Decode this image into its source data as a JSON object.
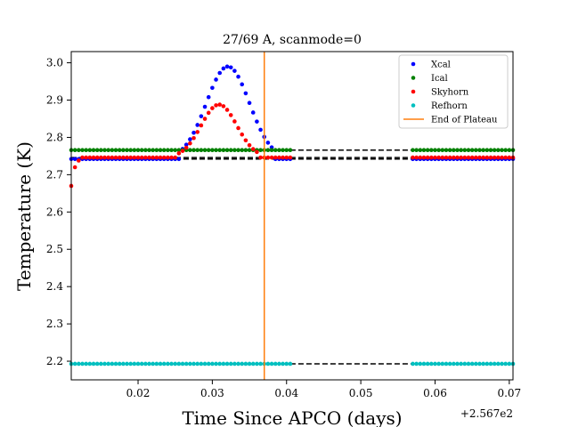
{
  "chart_data": {
    "type": "scatter",
    "title": "27/69 A, scanmode=0",
    "xlabel": "Time Since APCO (days)",
    "ylabel": "Temperature (K)",
    "x_offset_label": "+2.567e2",
    "xlim": [
      0.011,
      0.0705
    ],
    "ylim": [
      2.15,
      3.03
    ],
    "x_ticks": [
      0.02,
      0.03,
      0.04,
      0.05,
      0.06,
      0.07
    ],
    "x_tick_labels": [
      "0.02",
      "0.03",
      "0.04",
      "0.05",
      "0.06",
      "0.07"
    ],
    "y_ticks": [
      2.2,
      2.3,
      2.4,
      2.5,
      2.6,
      2.7,
      2.8,
      2.9,
      3.0
    ],
    "y_tick_labels": [
      "2.2",
      "2.3",
      "2.4",
      "2.5",
      "2.6",
      "2.7",
      "2.8",
      "2.9",
      "3.0"
    ],
    "grid": false,
    "legend_position": "top-right",
    "series": [
      {
        "name": "Xcal",
        "color": "#0000ff",
        "segments": [
          {
            "x_start": 0.011,
            "x_end": 0.0405,
            "base": 2.742,
            "peak": {
              "center": 0.0321,
              "height": 0.248,
              "width": 0.0029,
              "x_min": 0.026,
              "x_max": 0.038
            }
          },
          {
            "x_start": 0.057,
            "x_end": 0.0705,
            "base": 2.742
          }
        ]
      },
      {
        "name": "Ical",
        "color": "#008000",
        "segments": [
          {
            "x_start": 0.011,
            "x_end": 0.0405,
            "base": 2.766
          },
          {
            "x_start": 0.057,
            "x_end": 0.0705,
            "base": 2.766
          }
        ]
      },
      {
        "name": "Skyhorn",
        "color": "#ff0000",
        "segments": [
          {
            "x_start": 0.011,
            "x_end": 0.0405,
            "base": 2.746,
            "peak": {
              "center": 0.0309,
              "height": 0.142,
              "width": 0.0024,
              "x_min": 0.0255,
              "x_max": 0.0365
            },
            "start_points": [
              [
                0.011,
                2.67
              ],
              [
                0.0115,
                2.72
              ],
              [
                0.012,
                2.738
              ]
            ]
          },
          {
            "x_start": 0.057,
            "x_end": 0.0705,
            "base": 2.746
          }
        ]
      },
      {
        "name": "Refhorn",
        "color": "#00bfbf",
        "segments": [
          {
            "x_start": 0.011,
            "x_end": 0.0405,
            "base": 2.193
          },
          {
            "x_start": 0.057,
            "x_end": 0.0705,
            "base": 2.193
          }
        ]
      }
    ],
    "reference_lines": [
      {
        "y": 2.766,
        "style": "dashed",
        "color": "#000000"
      },
      {
        "y": 2.746,
        "style": "dashed",
        "color": "#000000"
      },
      {
        "y": 2.742,
        "style": "dashed",
        "color": "#000000"
      },
      {
        "y": 2.193,
        "style": "dashed",
        "color": "#000000"
      }
    ],
    "vertical_line": {
      "name": "End of Plateau",
      "x": 0.037,
      "color": "#ff7f0e"
    },
    "point_spacing": 0.0005
  }
}
